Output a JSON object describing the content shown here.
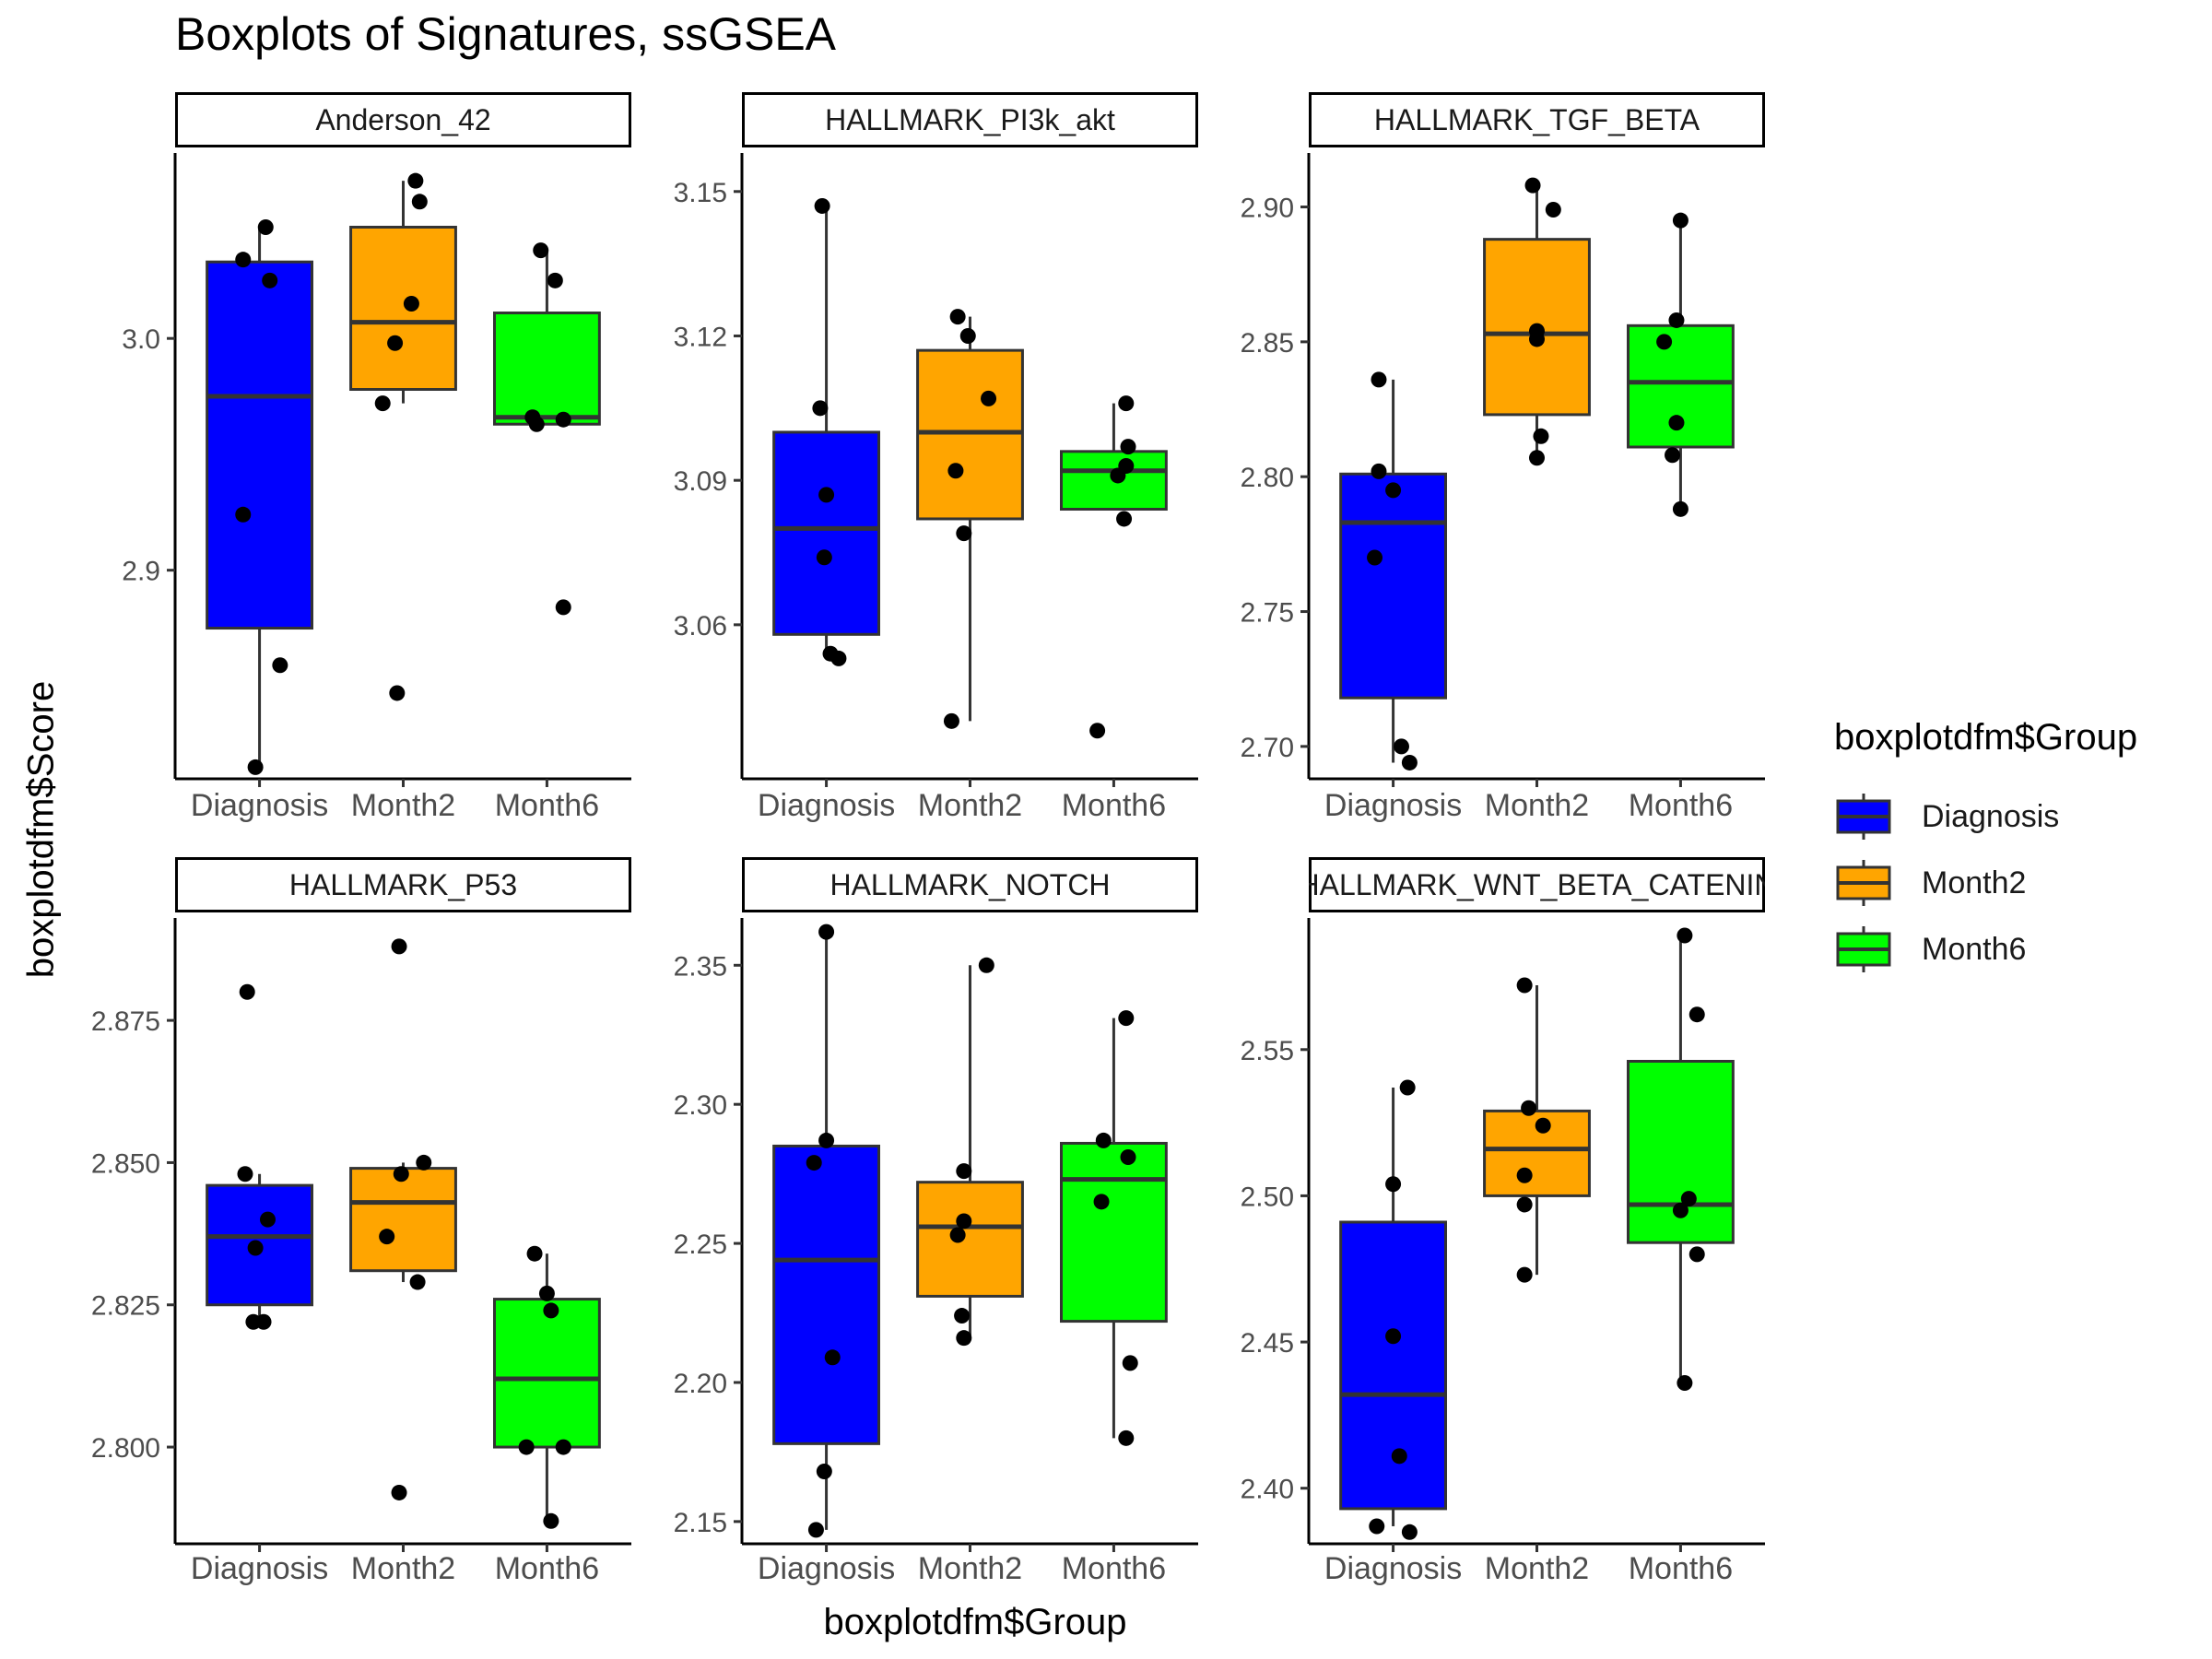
{
  "chart_data": {
    "type": "boxplot",
    "title": "Boxplots of Signatures, ssGSEA",
    "xlabel": "boxplotdfm$Group",
    "ylabel": "boxplotdfm$Score",
    "categories": [
      "Diagnosis",
      "Month2",
      "Month6"
    ],
    "legend": {
      "title": "boxplotdfm$Group",
      "placement": "right",
      "entries": [
        {
          "label": "Diagnosis",
          "color": "#0000ff"
        },
        {
          "label": "Month2",
          "color": "#ffa500"
        },
        {
          "label": "Month6",
          "color": "#00ff00"
        }
      ]
    },
    "grid": false,
    "panels": [
      {
        "title": "Anderson_42",
        "ylim": [
          2.81,
          3.08
        ],
        "yticks": [
          2.9,
          3.0
        ],
        "ytick_labels": [
          "2.9",
          "3.0"
        ],
        "boxes": [
          {
            "category": "Diagnosis",
            "q1": 2.875,
            "median": 2.975,
            "q3": 3.033,
            "whisker_low": 2.815,
            "whisker_high": 3.048
          },
          {
            "category": "Month2",
            "q1": 2.978,
            "median": 3.007,
            "q3": 3.048,
            "whisker_low": 2.972,
            "whisker_high": 3.068
          },
          {
            "category": "Month6",
            "q1": 2.963,
            "median": 2.966,
            "q3": 3.011,
            "whisker_low": 2.963,
            "whisker_high": 3.038
          }
        ],
        "points": [
          {
            "category": "Diagnosis",
            "jitter": -0.08,
            "value": 3.034
          },
          {
            "category": "Diagnosis",
            "jitter": 0.03,
            "value": 3.048
          },
          {
            "category": "Diagnosis",
            "jitter": 0.05,
            "value": 3.025
          },
          {
            "category": "Diagnosis",
            "jitter": -0.08,
            "value": 2.924
          },
          {
            "category": "Diagnosis",
            "jitter": 0.1,
            "value": 2.859
          },
          {
            "category": "Diagnosis",
            "jitter": -0.02,
            "value": 2.815
          },
          {
            "category": "Month2",
            "jitter": 0.06,
            "value": 3.068
          },
          {
            "category": "Month2",
            "jitter": 0.08,
            "value": 3.059
          },
          {
            "category": "Month2",
            "jitter": 0.04,
            "value": 3.015
          },
          {
            "category": "Month2",
            "jitter": -0.04,
            "value": 2.998
          },
          {
            "category": "Month2",
            "jitter": -0.1,
            "value": 2.972
          },
          {
            "category": "Month2",
            "jitter": -0.03,
            "value": 2.847
          },
          {
            "category": "Month6",
            "jitter": -0.03,
            "value": 3.038
          },
          {
            "category": "Month6",
            "jitter": 0.04,
            "value": 3.025
          },
          {
            "category": "Month6",
            "jitter": -0.07,
            "value": 2.966
          },
          {
            "category": "Month6",
            "jitter": 0.08,
            "value": 2.965
          },
          {
            "category": "Month6",
            "jitter": -0.05,
            "value": 2.963
          },
          {
            "category": "Month6",
            "jitter": 0.08,
            "value": 2.884
          }
        ]
      },
      {
        "title": "HALLMARK_PI3k_akt",
        "ylim": [
          3.028,
          3.158
        ],
        "yticks": [
          3.06,
          3.09,
          3.12,
          3.15
        ],
        "ytick_labels": [
          "3.06",
          "3.09",
          "3.12",
          "3.15"
        ],
        "boxes": [
          {
            "category": "Diagnosis",
            "q1": 3.058,
            "median": 3.08,
            "q3": 3.1,
            "whisker_low": 3.053,
            "whisker_high": 3.147
          },
          {
            "category": "Month2",
            "q1": 3.082,
            "median": 3.1,
            "q3": 3.117,
            "whisker_low": 3.04,
            "whisker_high": 3.124
          },
          {
            "category": "Month6",
            "q1": 3.084,
            "median": 3.092,
            "q3": 3.096,
            "whisker_low": 3.084,
            "whisker_high": 3.106
          }
        ],
        "points": [
          {
            "category": "Diagnosis",
            "jitter": -0.02,
            "value": 3.147
          },
          {
            "category": "Diagnosis",
            "jitter": -0.03,
            "value": 3.105
          },
          {
            "category": "Diagnosis",
            "jitter": 0.0,
            "value": 3.087
          },
          {
            "category": "Diagnosis",
            "jitter": -0.01,
            "value": 3.074
          },
          {
            "category": "Diagnosis",
            "jitter": 0.02,
            "value": 3.054
          },
          {
            "category": "Diagnosis",
            "jitter": 0.06,
            "value": 3.053
          },
          {
            "category": "Month2",
            "jitter": -0.06,
            "value": 3.124
          },
          {
            "category": "Month2",
            "jitter": -0.01,
            "value": 3.12
          },
          {
            "category": "Month2",
            "jitter": 0.09,
            "value": 3.107
          },
          {
            "category": "Month2",
            "jitter": -0.07,
            "value": 3.092
          },
          {
            "category": "Month2",
            "jitter": -0.03,
            "value": 3.079
          },
          {
            "category": "Month2",
            "jitter": -0.09,
            "value": 3.04
          },
          {
            "category": "Month6",
            "jitter": 0.06,
            "value": 3.106
          },
          {
            "category": "Month6",
            "jitter": 0.07,
            "value": 3.097
          },
          {
            "category": "Month6",
            "jitter": 0.06,
            "value": 3.093
          },
          {
            "category": "Month6",
            "jitter": 0.02,
            "value": 3.091
          },
          {
            "category": "Month6",
            "jitter": 0.05,
            "value": 3.082
          },
          {
            "category": "Month6",
            "jitter": -0.08,
            "value": 3.038
          }
        ]
      },
      {
        "title": "HALLMARK_TGF_BETA",
        "ylim": [
          2.688,
          2.92
        ],
        "yticks": [
          2.7,
          2.75,
          2.8,
          2.85,
          2.9
        ],
        "ytick_labels": [
          "2.70",
          "2.75",
          "2.80",
          "2.85",
          "2.90"
        ],
        "boxes": [
          {
            "category": "Diagnosis",
            "q1": 2.718,
            "median": 2.783,
            "q3": 2.801,
            "whisker_low": 2.694,
            "whisker_high": 2.836
          },
          {
            "category": "Month2",
            "q1": 2.823,
            "median": 2.853,
            "q3": 2.888,
            "whisker_low": 2.807,
            "whisker_high": 2.908
          },
          {
            "category": "Month6",
            "q1": 2.811,
            "median": 2.835,
            "q3": 2.856,
            "whisker_low": 2.788,
            "whisker_high": 2.895
          }
        ],
        "points": [
          {
            "category": "Diagnosis",
            "jitter": -0.07,
            "value": 2.836
          },
          {
            "category": "Diagnosis",
            "jitter": -0.07,
            "value": 2.802
          },
          {
            "category": "Diagnosis",
            "jitter": 0.0,
            "value": 2.795
          },
          {
            "category": "Diagnosis",
            "jitter": -0.09,
            "value": 2.77
          },
          {
            "category": "Diagnosis",
            "jitter": 0.04,
            "value": 2.7
          },
          {
            "category": "Diagnosis",
            "jitter": 0.08,
            "value": 2.694
          },
          {
            "category": "Month2",
            "jitter": -0.02,
            "value": 2.908
          },
          {
            "category": "Month2",
            "jitter": 0.08,
            "value": 2.899
          },
          {
            "category": "Month2",
            "jitter": 0.0,
            "value": 2.854
          },
          {
            "category": "Month2",
            "jitter": 0.0,
            "value": 2.851
          },
          {
            "category": "Month2",
            "jitter": 0.02,
            "value": 2.815
          },
          {
            "category": "Month2",
            "jitter": 0.0,
            "value": 2.807
          },
          {
            "category": "Month6",
            "jitter": 0.0,
            "value": 2.895
          },
          {
            "category": "Month6",
            "jitter": -0.02,
            "value": 2.858
          },
          {
            "category": "Month6",
            "jitter": -0.08,
            "value": 2.85
          },
          {
            "category": "Month6",
            "jitter": -0.02,
            "value": 2.82
          },
          {
            "category": "Month6",
            "jitter": -0.04,
            "value": 2.808
          },
          {
            "category": "Month6",
            "jitter": 0.0,
            "value": 2.788
          }
        ]
      },
      {
        "title": "HALLMARK_P53",
        "ylim": [
          2.783,
          2.893
        ],
        "yticks": [
          2.8,
          2.825,
          2.85,
          2.875
        ],
        "ytick_labels": [
          "2.800",
          "2.825",
          "2.850",
          "2.875"
        ],
        "boxes": [
          {
            "category": "Diagnosis",
            "q1": 2.825,
            "median": 2.837,
            "q3": 2.846,
            "whisker_low": 2.822,
            "whisker_high": 2.848
          },
          {
            "category": "Month2",
            "q1": 2.831,
            "median": 2.843,
            "q3": 2.849,
            "whisker_low": 2.829,
            "whisker_high": 2.85
          },
          {
            "category": "Month6",
            "q1": 2.8,
            "median": 2.812,
            "q3": 2.826,
            "whisker_low": 2.787,
            "whisker_high": 2.834
          }
        ],
        "points": [
          {
            "category": "Diagnosis",
            "jitter": -0.06,
            "value": 2.88
          },
          {
            "category": "Diagnosis",
            "jitter": -0.07,
            "value": 2.848
          },
          {
            "category": "Diagnosis",
            "jitter": 0.04,
            "value": 2.84
          },
          {
            "category": "Diagnosis",
            "jitter": -0.02,
            "value": 2.835
          },
          {
            "category": "Diagnosis",
            "jitter": -0.03,
            "value": 2.822
          },
          {
            "category": "Diagnosis",
            "jitter": 0.02,
            "value": 2.822
          },
          {
            "category": "Month2",
            "jitter": -0.02,
            "value": 2.888
          },
          {
            "category": "Month2",
            "jitter": 0.1,
            "value": 2.85
          },
          {
            "category": "Month2",
            "jitter": -0.01,
            "value": 2.848
          },
          {
            "category": "Month2",
            "jitter": -0.08,
            "value": 2.837
          },
          {
            "category": "Month2",
            "jitter": 0.07,
            "value": 2.829
          },
          {
            "category": "Month2",
            "jitter": -0.02,
            "value": 2.792
          },
          {
            "category": "Month6",
            "jitter": -0.06,
            "value": 2.834
          },
          {
            "category": "Month6",
            "jitter": 0.0,
            "value": 2.827
          },
          {
            "category": "Month6",
            "jitter": 0.02,
            "value": 2.824
          },
          {
            "category": "Month6",
            "jitter": 0.08,
            "value": 2.8
          },
          {
            "category": "Month6",
            "jitter": -0.1,
            "value": 2.8
          },
          {
            "category": "Month6",
            "jitter": 0.02,
            "value": 2.787
          }
        ]
      },
      {
        "title": "HALLMARK_NOTCH",
        "ylim": [
          2.142,
          2.367
        ],
        "yticks": [
          2.15,
          2.2,
          2.25,
          2.3,
          2.35
        ],
        "ytick_labels": [
          "2.15",
          "2.20",
          "2.25",
          "2.30",
          "2.35"
        ],
        "boxes": [
          {
            "category": "Diagnosis",
            "q1": 2.178,
            "median": 2.244,
            "q3": 2.285,
            "whisker_low": 2.147,
            "whisker_high": 2.362
          },
          {
            "category": "Month2",
            "q1": 2.231,
            "median": 2.256,
            "q3": 2.272,
            "whisker_low": 2.216,
            "whisker_high": 2.35
          },
          {
            "category": "Month6",
            "q1": 2.222,
            "median": 2.273,
            "q3": 2.286,
            "whisker_low": 2.18,
            "whisker_high": 2.331
          }
        ],
        "points": [
          {
            "category": "Diagnosis",
            "jitter": 0.0,
            "value": 2.362
          },
          {
            "category": "Diagnosis",
            "jitter": 0.0,
            "value": 2.287
          },
          {
            "category": "Diagnosis",
            "jitter": -0.06,
            "value": 2.279
          },
          {
            "category": "Diagnosis",
            "jitter": 0.03,
            "value": 2.209
          },
          {
            "category": "Diagnosis",
            "jitter": -0.01,
            "value": 2.168
          },
          {
            "category": "Diagnosis",
            "jitter": -0.05,
            "value": 2.147
          },
          {
            "category": "Month2",
            "jitter": 0.08,
            "value": 2.35
          },
          {
            "category": "Month2",
            "jitter": -0.03,
            "value": 2.276
          },
          {
            "category": "Month2",
            "jitter": -0.03,
            "value": 2.258
          },
          {
            "category": "Month2",
            "jitter": -0.06,
            "value": 2.253
          },
          {
            "category": "Month2",
            "jitter": -0.04,
            "value": 2.224
          },
          {
            "category": "Month2",
            "jitter": -0.03,
            "value": 2.216
          },
          {
            "category": "Month6",
            "jitter": 0.06,
            "value": 2.331
          },
          {
            "category": "Month6",
            "jitter": -0.05,
            "value": 2.287
          },
          {
            "category": "Month6",
            "jitter": 0.07,
            "value": 2.281
          },
          {
            "category": "Month6",
            "jitter": -0.06,
            "value": 2.265
          },
          {
            "category": "Month6",
            "jitter": 0.08,
            "value": 2.207
          },
          {
            "category": "Month6",
            "jitter": 0.06,
            "value": 2.18
          }
        ]
      },
      {
        "title": "HALLMARK_WNT_BETA_CATENIN",
        "ylim": [
          2.381,
          2.595
        ],
        "yticks": [
          2.4,
          2.45,
          2.5,
          2.55
        ],
        "ytick_labels": [
          "2.40",
          "2.45",
          "2.50",
          "2.55"
        ],
        "boxes": [
          {
            "category": "Diagnosis",
            "q1": 2.393,
            "median": 2.432,
            "q3": 2.491,
            "whisker_low": 2.387,
            "whisker_high": 2.537
          },
          {
            "category": "Month2",
            "q1": 2.5,
            "median": 2.516,
            "q3": 2.529,
            "whisker_low": 2.473,
            "whisker_high": 2.572
          },
          {
            "category": "Month6",
            "q1": 2.484,
            "median": 2.497,
            "q3": 2.546,
            "whisker_low": 2.436,
            "whisker_high": 2.589
          }
        ],
        "points": [
          {
            "category": "Diagnosis",
            "jitter": 0.07,
            "value": 2.537
          },
          {
            "category": "Diagnosis",
            "jitter": 0.0,
            "value": 2.504
          },
          {
            "category": "Diagnosis",
            "jitter": 0.0,
            "value": 2.452
          },
          {
            "category": "Diagnosis",
            "jitter": 0.03,
            "value": 2.411
          },
          {
            "category": "Diagnosis",
            "jitter": -0.08,
            "value": 2.387
          },
          {
            "category": "Diagnosis",
            "jitter": 0.08,
            "value": 2.385
          },
          {
            "category": "Month2",
            "jitter": -0.06,
            "value": 2.572
          },
          {
            "category": "Month2",
            "jitter": -0.04,
            "value": 2.53
          },
          {
            "category": "Month2",
            "jitter": 0.03,
            "value": 2.524
          },
          {
            "category": "Month2",
            "jitter": -0.06,
            "value": 2.507
          },
          {
            "category": "Month2",
            "jitter": -0.06,
            "value": 2.497
          },
          {
            "category": "Month2",
            "jitter": -0.06,
            "value": 2.473
          },
          {
            "category": "Month6",
            "jitter": 0.02,
            "value": 2.589
          },
          {
            "category": "Month6",
            "jitter": 0.08,
            "value": 2.562
          },
          {
            "category": "Month6",
            "jitter": 0.04,
            "value": 2.499
          },
          {
            "category": "Month6",
            "jitter": 0.0,
            "value": 2.495
          },
          {
            "category": "Month6",
            "jitter": 0.08,
            "value": 2.48
          },
          {
            "category": "Month6",
            "jitter": 0.02,
            "value": 2.436
          }
        ]
      }
    ]
  }
}
